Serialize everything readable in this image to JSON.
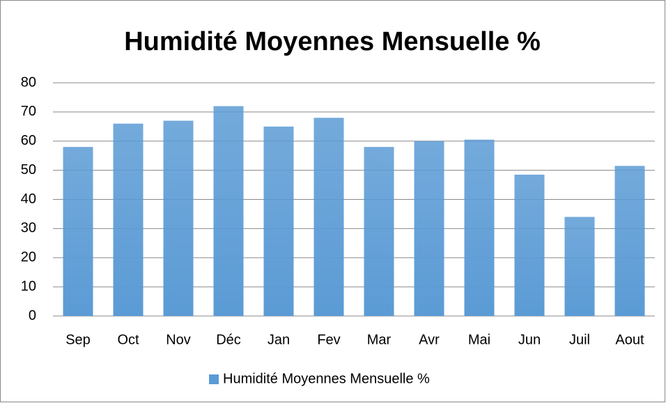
{
  "chart_data": {
    "type": "bar",
    "title": "Humidité Moyennes Mensuelle %",
    "categories": [
      "Sep",
      "Oct",
      "Nov",
      "Déc",
      "Jan",
      "Fev",
      "Mar",
      "Avr",
      "Mai",
      "Jun",
      "Juil",
      "Aout"
    ],
    "series": [
      {
        "name": "Humidité Moyennes Mensuelle %",
        "color": "#5b9bd5",
        "values": [
          58,
          66,
          67,
          72,
          65,
          68,
          58,
          60,
          60.5,
          48.5,
          34,
          51.5
        ]
      }
    ],
    "ylim": [
      0,
      80
    ],
    "yticks": [
      0,
      10,
      20,
      30,
      40,
      50,
      60,
      70,
      80
    ],
    "grid": true,
    "legend": "bottom"
  }
}
